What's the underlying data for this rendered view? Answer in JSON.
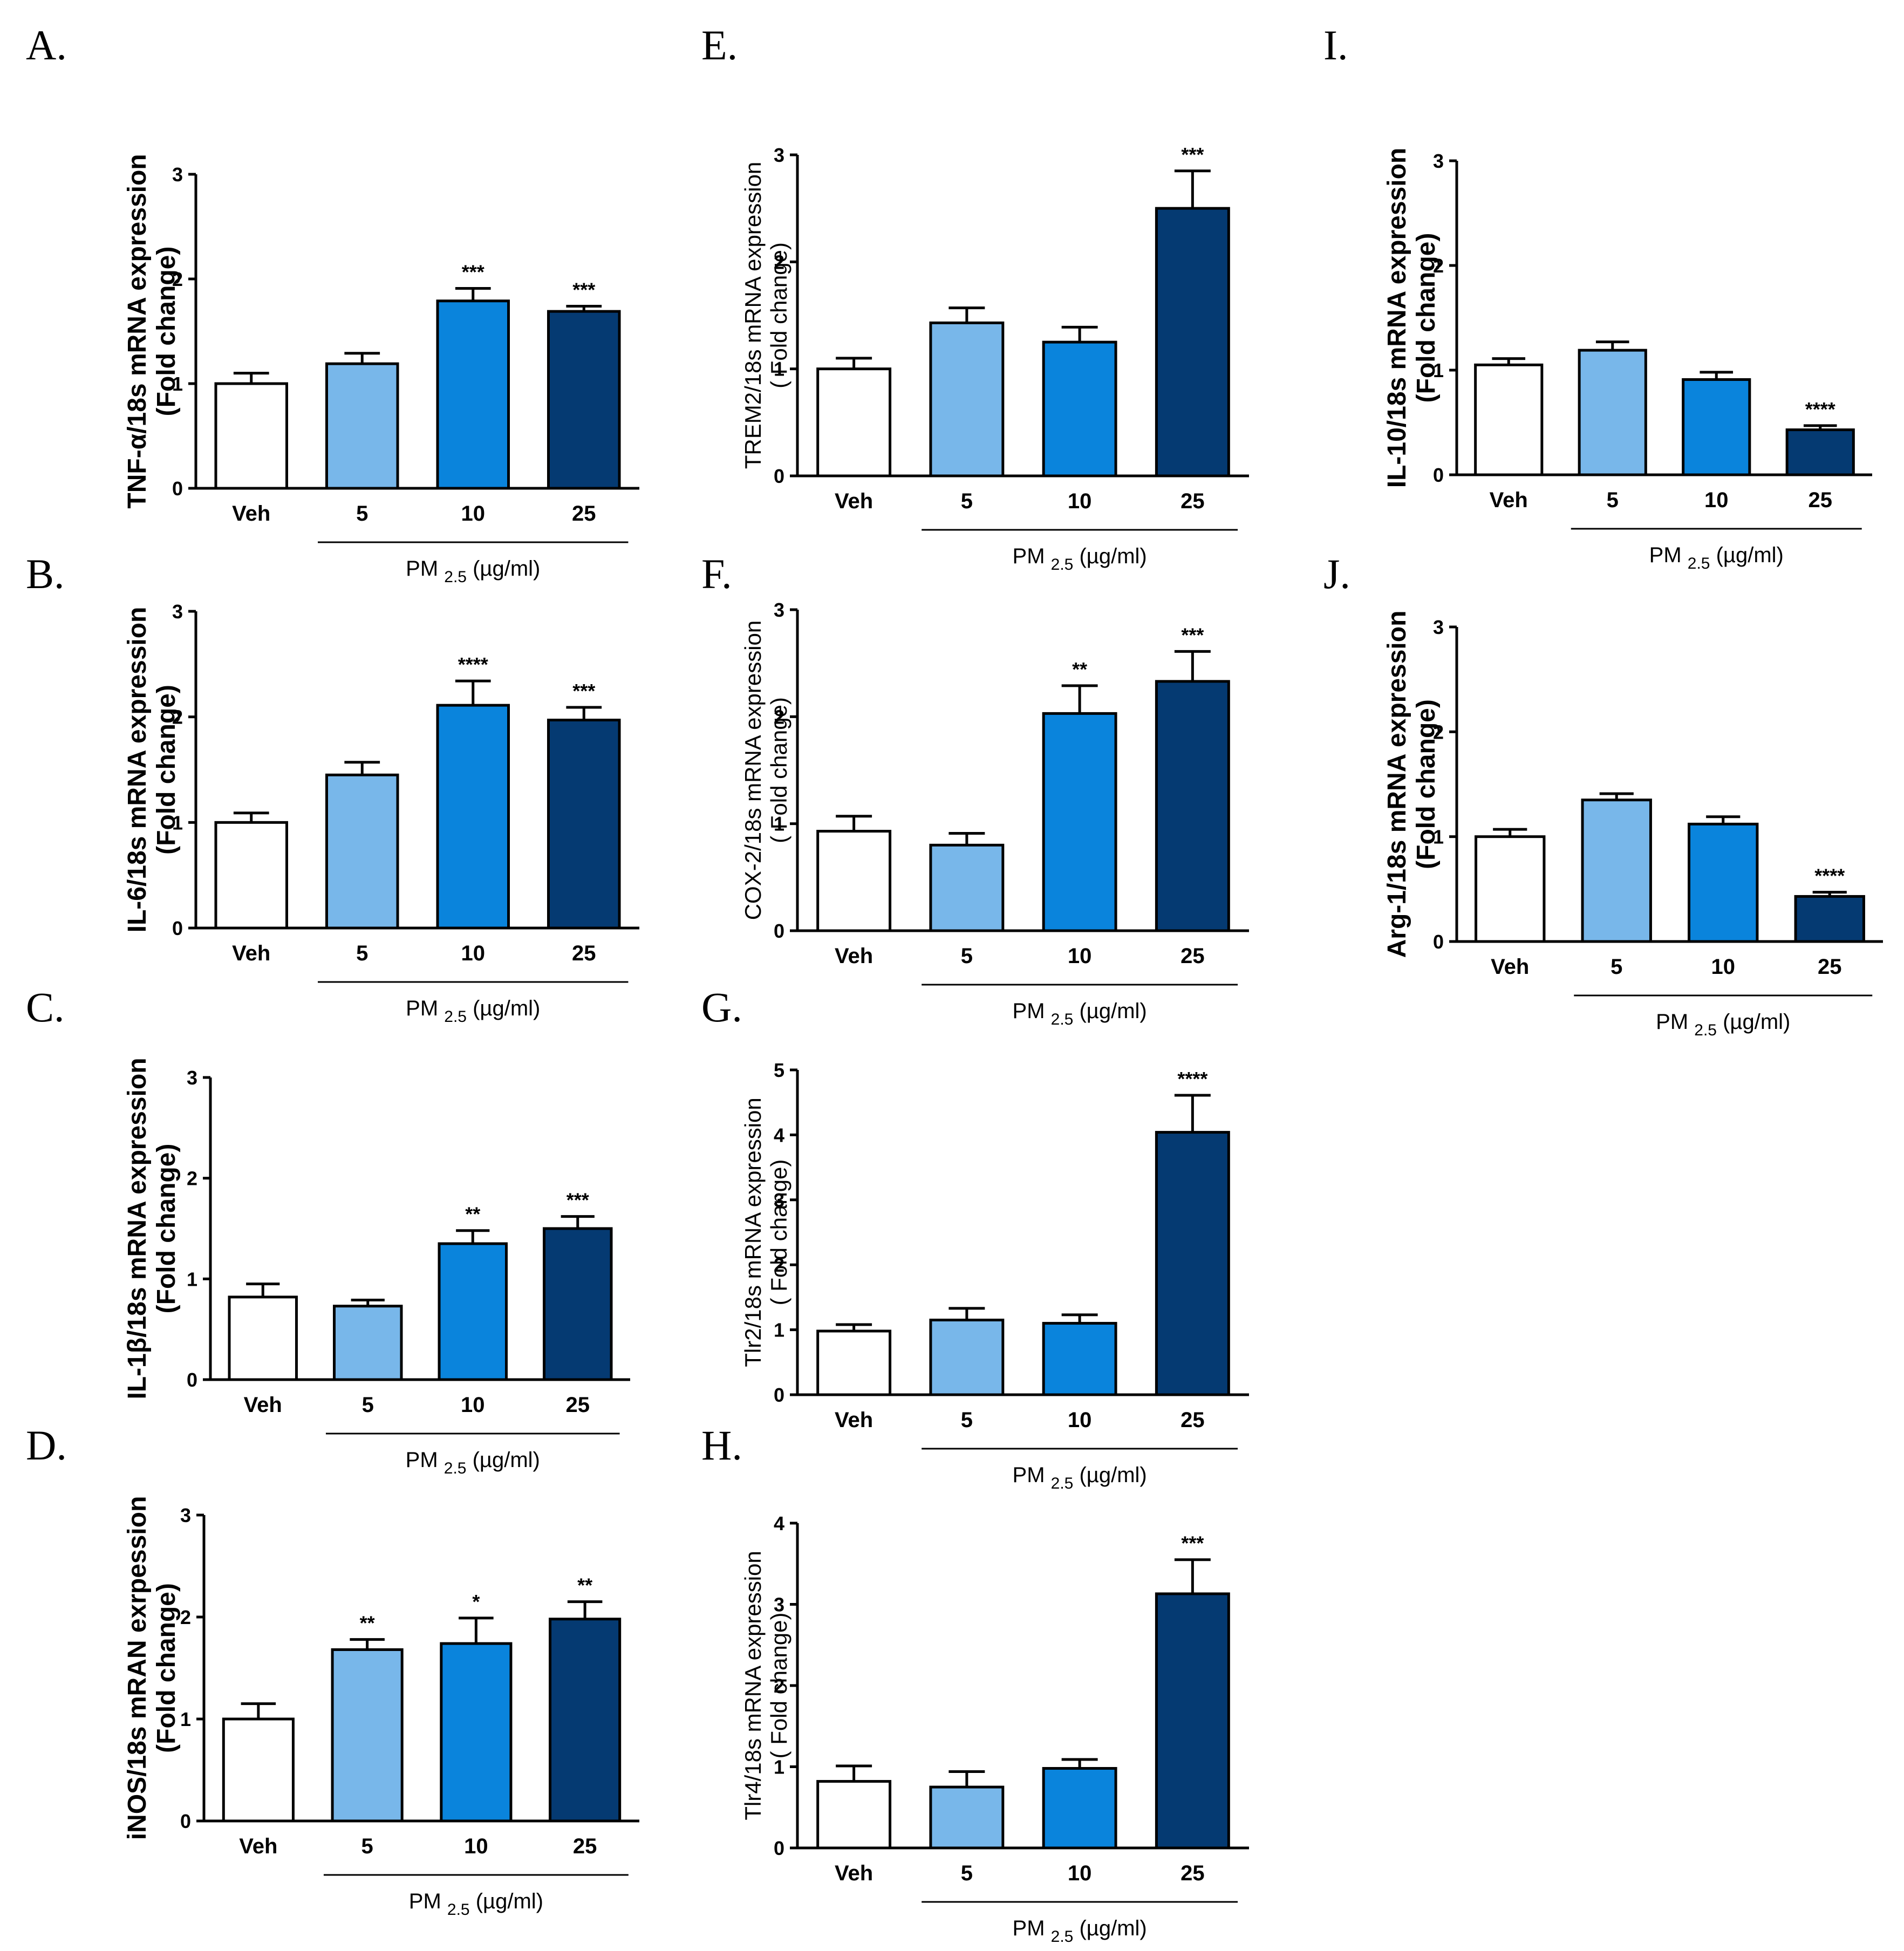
{
  "colors": {
    "Veh": "#ffffff",
    "5": "#78b7ea",
    "10": "#0a84dc",
    "25": "#053a72",
    "stroke": "#000000"
  },
  "chart_data": [
    {
      "id": "A",
      "letter": "A.",
      "type": "bar",
      "ylabel": "TNF-α/18s mRNA expression",
      "ylabel2": "(Fold change)",
      "ylabel_style": "bold",
      "categories": [
        "Veh",
        "5",
        "10",
        "25"
      ],
      "values": [
        1.0,
        1.19,
        1.79,
        1.69
      ],
      "errors": [
        0.1,
        0.1,
        0.12,
        0.05
      ],
      "significance": [
        "",
        "",
        "***",
        "***"
      ],
      "ylim": [
        0,
        3
      ],
      "yticks": [
        "0",
        "1",
        "2",
        "3"
      ],
      "group_label_main": "PM",
      "group_label_sub": "2.5",
      "group_label_unit": "(µg/ml)"
    },
    {
      "id": "B",
      "letter": "B.",
      "type": "bar",
      "ylabel": "IL-6/18s mRNA expression",
      "ylabel2": "(Fold change)",
      "ylabel_style": "bold",
      "categories": [
        "Veh",
        "5",
        "10",
        "25"
      ],
      "values": [
        1.0,
        1.45,
        2.11,
        1.97
      ],
      "errors": [
        0.09,
        0.12,
        0.23,
        0.12
      ],
      "significance": [
        "",
        "",
        "****",
        "***"
      ],
      "ylim": [
        0,
        3
      ],
      "yticks": [
        "0",
        "1",
        "2",
        "3"
      ],
      "group_label_main": "PM",
      "group_label_sub": "2.5",
      "group_label_unit": "(µg/ml)"
    },
    {
      "id": "C",
      "letter": "C.",
      "type": "bar",
      "ylabel": "IL-1β/18s mRNA expression",
      "ylabel2": "(Fold change)",
      "ylabel_style": "bold",
      "categories": [
        "Veh",
        "5",
        "10",
        "25"
      ],
      "values": [
        0.82,
        0.73,
        1.35,
        1.5
      ],
      "errors": [
        0.13,
        0.06,
        0.13,
        0.12
      ],
      "significance": [
        "",
        "",
        "**",
        "***"
      ],
      "ylim": [
        0,
        3
      ],
      "yticks": [
        "0",
        "1",
        "2",
        "3"
      ],
      "group_label_main": "PM",
      "group_label_sub": "2.5",
      "group_label_unit": "(µg/ml)"
    },
    {
      "id": "D",
      "letter": "D.",
      "type": "bar",
      "ylabel": "iNOS/18s mRAN exrpession",
      "ylabel2": "(Fold change)",
      "ylabel_style": "bold",
      "categories": [
        "Veh",
        "5",
        "10",
        "25"
      ],
      "values": [
        1.0,
        1.68,
        1.74,
        1.98
      ],
      "errors": [
        0.15,
        0.1,
        0.25,
        0.17
      ],
      "significance": [
        "",
        "**",
        "*",
        "**"
      ],
      "ylim": [
        0,
        3
      ],
      "yticks": [
        "0",
        "1",
        "2",
        "3"
      ],
      "group_label_main": "PM",
      "group_label_sub": "2.5",
      "group_label_unit": "(µg/ml)"
    },
    {
      "id": "E",
      "letter": "E.",
      "type": "bar",
      "ylabel": "TREM2/18s mRNA expression",
      "ylabel2": "( Fold change)",
      "ylabel_style": "plain",
      "categories": [
        "Veh",
        "5",
        "10",
        "25"
      ],
      "values": [
        1.0,
        1.43,
        1.25,
        2.5
      ],
      "errors": [
        0.1,
        0.14,
        0.14,
        0.35
      ],
      "significance": [
        "",
        "",
        "",
        "***"
      ],
      "ylim": [
        0,
        3
      ],
      "yticks": [
        "0",
        "1",
        "2",
        "3"
      ],
      "group_label_main": "PM",
      "group_label_sub": "2.5",
      "group_label_unit": "(µg/ml)"
    },
    {
      "id": "F",
      "letter": "F.",
      "type": "bar",
      "ylabel": "COX-2/18s mRNA expression",
      "ylabel2": "( Fold change)",
      "ylabel_style": "plain",
      "categories": [
        "Veh",
        "5",
        "10",
        "25"
      ],
      "values": [
        0.93,
        0.8,
        2.03,
        2.33
      ],
      "errors": [
        0.14,
        0.11,
        0.26,
        0.28
      ],
      "significance": [
        "",
        "",
        "**",
        "***"
      ],
      "ylim": [
        0,
        3
      ],
      "yticks": [
        "0",
        "1",
        "2",
        "3"
      ],
      "group_label_main": "PM",
      "group_label_sub": "2.5",
      "group_label_unit": "(µg/ml)"
    },
    {
      "id": "G",
      "letter": "G.",
      "type": "bar",
      "ylabel": "Tlr2/18s mRNA expression",
      "ylabel2": "( Fold change)",
      "ylabel_style": "plain",
      "categories": [
        "Veh",
        "5",
        "10",
        "25"
      ],
      "values": [
        0.98,
        1.15,
        1.1,
        4.04
      ],
      "errors": [
        0.1,
        0.18,
        0.13,
        0.57
      ],
      "significance": [
        "",
        "",
        "",
        "****"
      ],
      "ylim": [
        0,
        5
      ],
      "yticks": [
        "0",
        "1",
        "2",
        "3",
        "4",
        "5"
      ],
      "group_label_main": "PM",
      "group_label_sub": "2.5",
      "group_label_unit": "(µg/ml)"
    },
    {
      "id": "H",
      "letter": "H.",
      "type": "bar",
      "ylabel": "Tlr4/18s mRNA expression",
      "ylabel2": "( Fold change)",
      "ylabel_style": "plain",
      "categories": [
        "Veh",
        "5",
        "10",
        "25"
      ],
      "values": [
        0.82,
        0.75,
        0.98,
        3.13
      ],
      "errors": [
        0.19,
        0.19,
        0.11,
        0.42
      ],
      "significance": [
        "",
        "",
        "",
        "***"
      ],
      "ylim": [
        0,
        4
      ],
      "yticks": [
        "0",
        "1",
        "2",
        "3",
        "4"
      ],
      "group_label_main": "PM",
      "group_label_sub": "2.5",
      "group_label_unit": "(µg/ml)"
    },
    {
      "id": "I",
      "letter": "I.",
      "type": "bar",
      "ylabel": "IL-10/18s mRNA expression",
      "ylabel2": "(Fold change)",
      "ylabel_style": "bold",
      "categories": [
        "Veh",
        "5",
        "10",
        "25"
      ],
      "values": [
        1.05,
        1.19,
        0.91,
        0.43
      ],
      "errors": [
        0.06,
        0.08,
        0.07,
        0.04
      ],
      "significance": [
        "",
        "",
        "",
        "****"
      ],
      "ylim": [
        0,
        3
      ],
      "yticks": [
        "0",
        "1",
        "2",
        "3"
      ],
      "group_label_main": "PM",
      "group_label_sub": "2.5",
      "group_label_unit": "(µg/ml)"
    },
    {
      "id": "J",
      "letter": "J.",
      "type": "bar",
      "ylabel": "Arg-1/18s mRNA expression",
      "ylabel2": "(Fold change)",
      "ylabel_style": "bold",
      "categories": [
        "Veh",
        "5",
        "10",
        "25"
      ],
      "values": [
        1.0,
        1.35,
        1.12,
        0.43
      ],
      "errors": [
        0.07,
        0.06,
        0.07,
        0.04
      ],
      "significance": [
        "",
        "",
        "",
        "****"
      ],
      "ylim": [
        0,
        3
      ],
      "yticks": [
        "0",
        "1",
        "2",
        "3"
      ],
      "group_label_main": "PM",
      "group_label_sub": "2.5",
      "group_label_unit": "(µg/ml)"
    }
  ]
}
